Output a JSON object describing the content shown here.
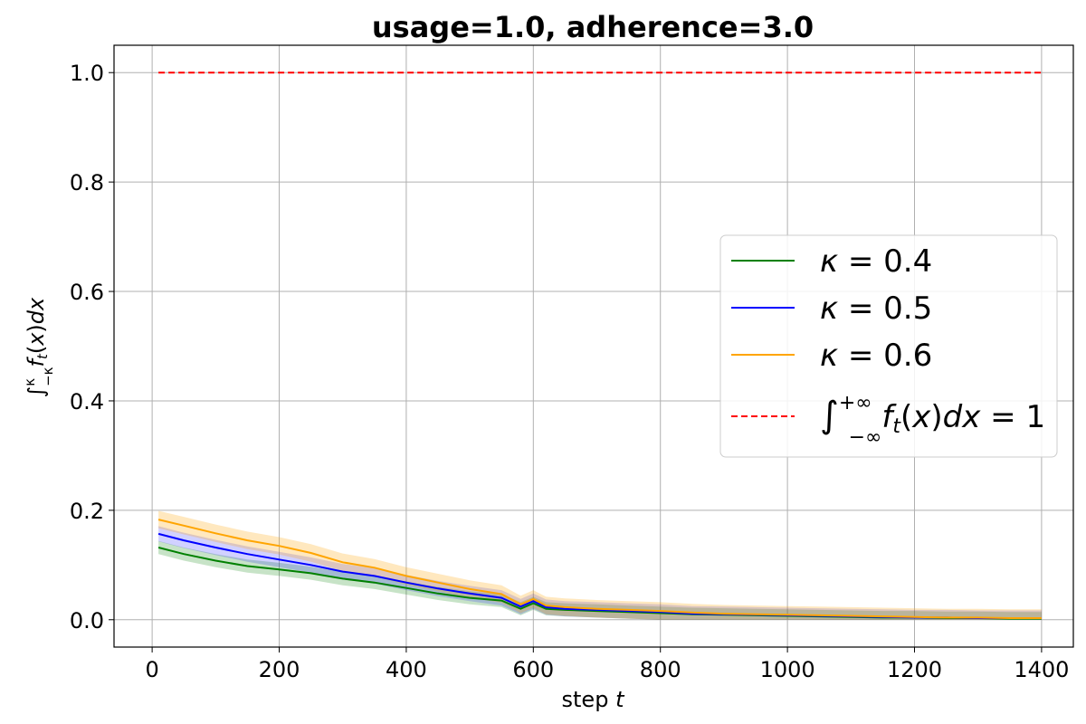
{
  "chart_data": {
    "type": "line",
    "title": "usage=1.0, adherence=3.0",
    "xlabel": "step t",
    "ylabel": "∫_{−κ}^{κ} f_t(x)dx",
    "xlim": [
      -60,
      1450
    ],
    "ylim": [
      -0.05,
      1.05
    ],
    "xticks": [
      "0",
      "200",
      "400",
      "600",
      "800",
      "1000",
      "1200",
      "1400"
    ],
    "yticks": [
      "0.0",
      "0.2",
      "0.4",
      "0.6",
      "0.8",
      "1.0"
    ],
    "grid": true,
    "legend_position": "center-right",
    "x": [
      10,
      50,
      100,
      150,
      200,
      250,
      300,
      350,
      400,
      450,
      500,
      550,
      580,
      600,
      620,
      650,
      700,
      750,
      800,
      850,
      900,
      950,
      1000,
      1050,
      1100,
      1150,
      1200,
      1250,
      1300,
      1350,
      1400
    ],
    "series": [
      {
        "name": "κ = 0.4",
        "color": "#008000",
        "band_color": "rgba(0,128,0,0.22)",
        "values": [
          0.132,
          0.12,
          0.108,
          0.098,
          0.092,
          0.085,
          0.075,
          0.068,
          0.058,
          0.048,
          0.04,
          0.035,
          0.02,
          0.03,
          0.02,
          0.018,
          0.016,
          0.014,
          0.012,
          0.01,
          0.009,
          0.008,
          0.007,
          0.006,
          0.005,
          0.004,
          0.004,
          0.003,
          0.003,
          0.002,
          0.002
        ],
        "band": 0.012
      },
      {
        "name": "κ = 0.5",
        "color": "#0000ff",
        "band_color": "rgba(0,0,255,0.18)",
        "values": [
          0.157,
          0.145,
          0.132,
          0.12,
          0.11,
          0.1,
          0.088,
          0.08,
          0.068,
          0.057,
          0.048,
          0.04,
          0.024,
          0.034,
          0.023,
          0.02,
          0.018,
          0.016,
          0.014,
          0.011,
          0.01,
          0.009,
          0.008,
          0.007,
          0.006,
          0.005,
          0.004,
          0.004,
          0.003,
          0.003,
          0.003
        ],
        "band": 0.014
      },
      {
        "name": "κ = 0.6",
        "color": "#ffa500",
        "band_color": "rgba(255,165,0,0.25)",
        "values": [
          0.183,
          0.172,
          0.158,
          0.145,
          0.135,
          0.122,
          0.105,
          0.095,
          0.08,
          0.068,
          0.056,
          0.047,
          0.028,
          0.038,
          0.026,
          0.023,
          0.02,
          0.018,
          0.016,
          0.013,
          0.011,
          0.01,
          0.009,
          0.008,
          0.007,
          0.006,
          0.005,
          0.004,
          0.004,
          0.003,
          0.003
        ],
        "band": 0.016
      },
      {
        "name": "∫_{−∞}^{+∞} f_t(x)dx = 1",
        "color": "#ff0000",
        "dashed": true,
        "values": [
          1.0,
          1.0,
          1.0,
          1.0,
          1.0,
          1.0,
          1.0,
          1.0,
          1.0,
          1.0,
          1.0,
          1.0,
          1.0,
          1.0,
          1.0,
          1.0,
          1.0,
          1.0,
          1.0,
          1.0,
          1.0,
          1.0,
          1.0,
          1.0,
          1.0,
          1.0,
          1.0,
          1.0,
          1.0,
          1.0,
          1.0
        ]
      }
    ]
  }
}
